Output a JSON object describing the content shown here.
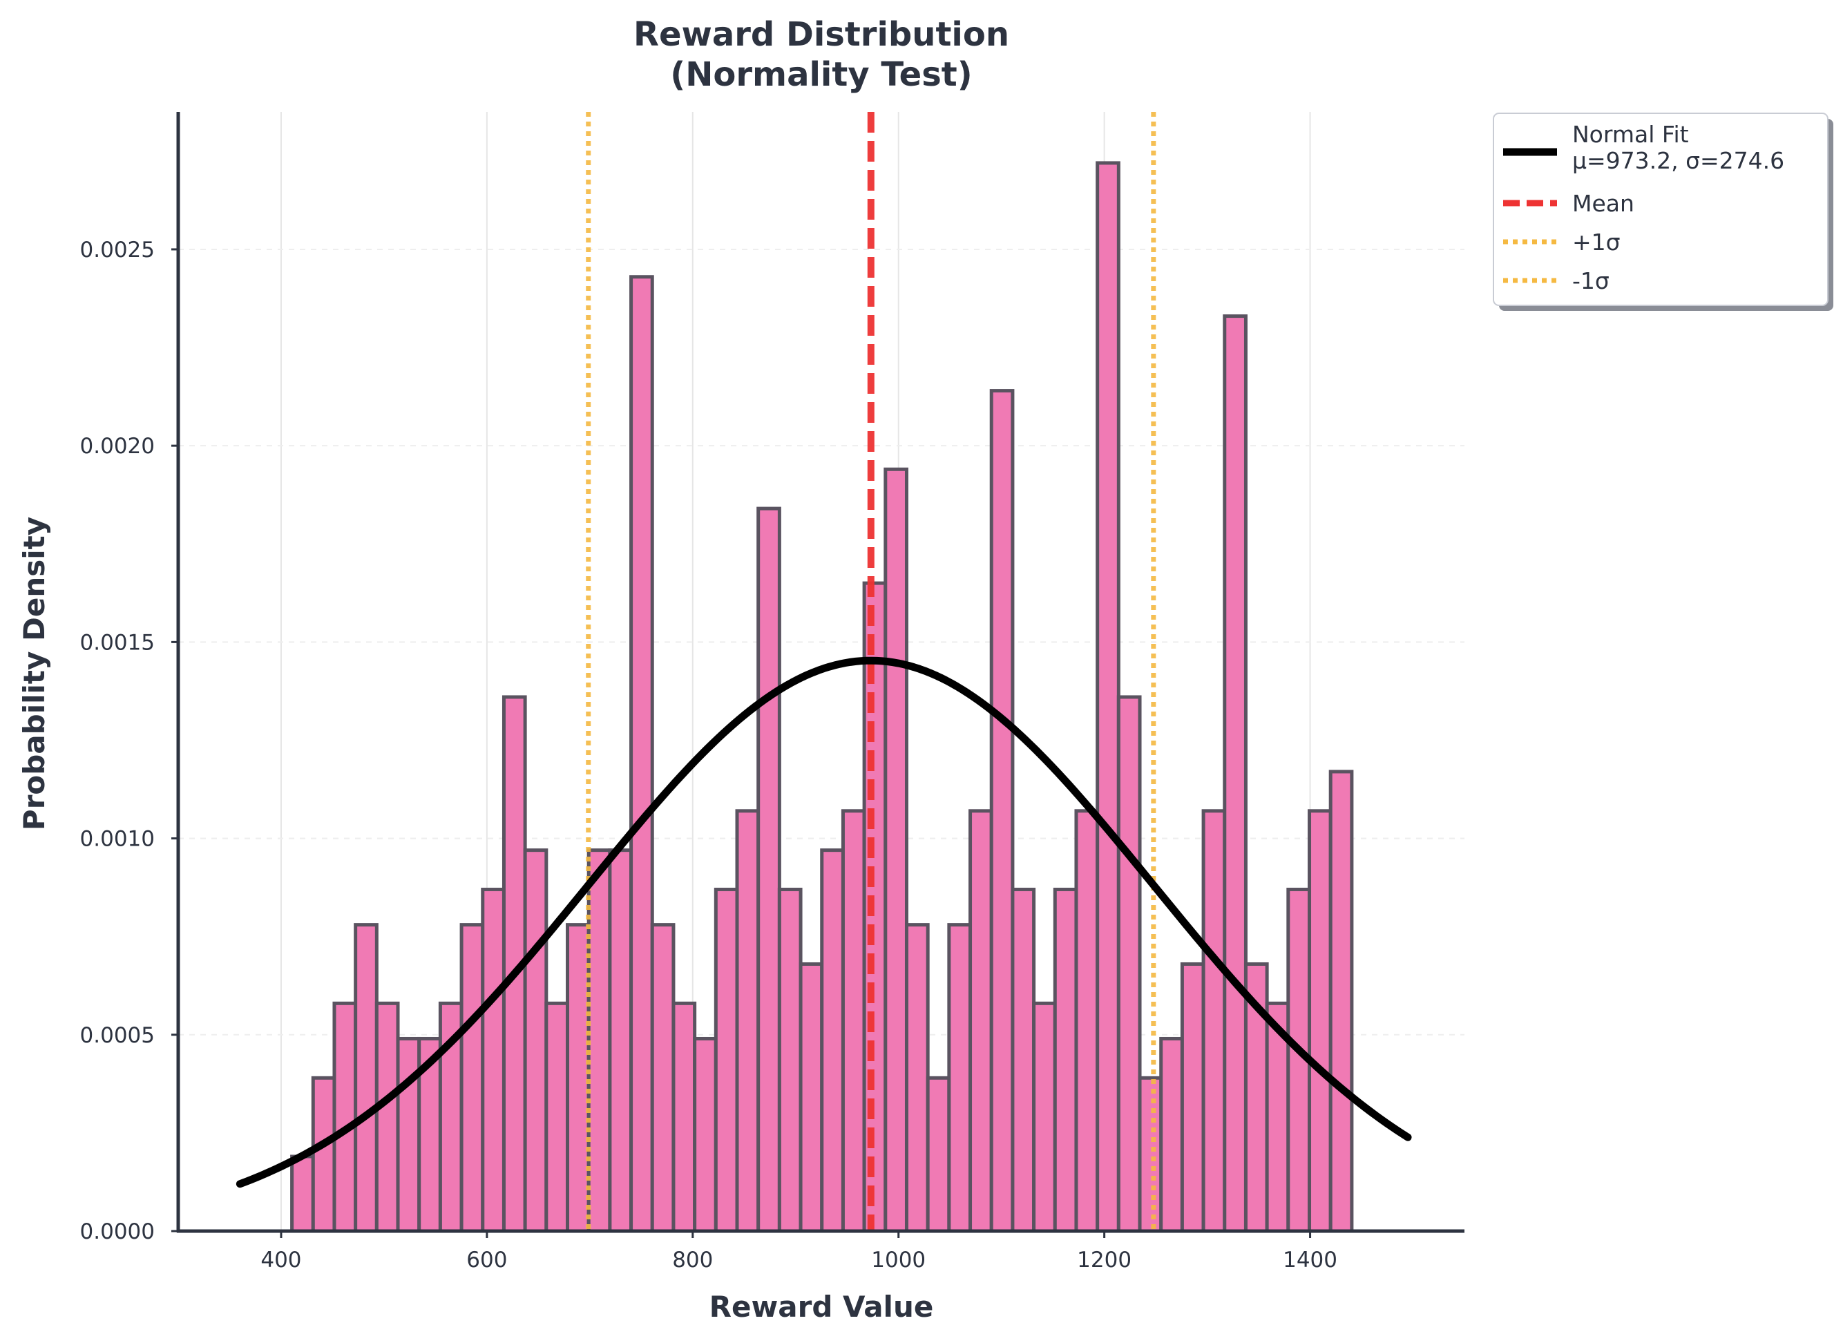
{
  "chart_data": {
    "type": "bar",
    "title": [
      "Reward Distribution",
      "(Normality Test)"
    ],
    "xlabel": "Reward Value",
    "ylabel": "Probability Density",
    "xlim": [
      300,
      1550
    ],
    "ylim": [
      0,
      0.00285
    ],
    "xticks": [
      400,
      600,
      800,
      1000,
      1200,
      1400
    ],
    "xtick_labels": [
      "400",
      "600",
      "800",
      "1000",
      "1200",
      "1400"
    ],
    "yticks": [
      0,
      0.0005,
      0.001,
      0.0015,
      0.002,
      0.0025
    ],
    "ytick_labels": [
      "0.0000",
      "0.0005",
      "0.0010",
      "0.0015",
      "0.0020",
      "0.0025"
    ],
    "grid": true,
    "histogram": {
      "bin_start": 410.5,
      "bin_width": 20.6,
      "color": "#f07ab4",
      "edge_color": "#5a5360",
      "values": [
        0.00019,
        0.00039,
        0.00058,
        0.00078,
        0.00058,
        0.00049,
        0.00049,
        0.00058,
        0.00078,
        0.00087,
        0.00136,
        0.00097,
        0.00058,
        0.00078,
        0.00097,
        0.00097,
        0.00243,
        0.00078,
        0.00058,
        0.00049,
        0.00087,
        0.00107,
        0.00184,
        0.00087,
        0.00068,
        0.00097,
        0.00107,
        0.00165,
        0.00194,
        0.00078,
        0.00039,
        0.00078,
        0.00107,
        0.00214,
        0.00087,
        0.00058,
        0.00087,
        0.00107,
        0.00272,
        0.00136,
        0.00039,
        0.00049,
        0.00068,
        0.00107,
        0.00233,
        0.00068,
        0.00058,
        0.00087,
        0.00107,
        0.00117
      ]
    },
    "normal_fit": {
      "mu": 973.2,
      "sigma": 274.6,
      "x_range": [
        360,
        1495
      ],
      "color": "#000000"
    },
    "mean_line": {
      "x": 973.2,
      "color": "#ee3333"
    },
    "sigma_lines": [
      {
        "x": 698.6,
        "color": "#f5b942"
      },
      {
        "x": 1247.8,
        "color": "#f5b942"
      }
    ],
    "legend": {
      "position": "outside-upper-right",
      "entries": [
        {
          "label": [
            "Normal Fit",
            "μ=973.2, σ=274.6"
          ],
          "style": "solid",
          "color": "#000000"
        },
        {
          "label": [
            "Mean"
          ],
          "style": "dashed",
          "color": "#ee3333"
        },
        {
          "label": [
            "+1σ"
          ],
          "style": "dotted",
          "color": "#f5b942"
        },
        {
          "label": [
            "-1σ"
          ],
          "style": "dotted",
          "color": "#f5b942"
        }
      ]
    }
  }
}
